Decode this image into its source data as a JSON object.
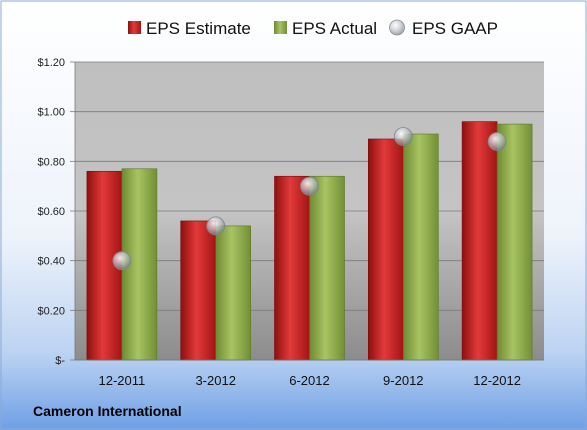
{
  "company": "Cameron International",
  "colors": {
    "estimate": "#cc1f1f",
    "actual": "#8fae4a",
    "gaap": "#b8bcc4"
  },
  "chart_data": {
    "type": "bar",
    "categories": [
      "12-2011",
      "3-2012",
      "6-2012",
      "9-2012",
      "12-2012"
    ],
    "series": [
      {
        "name": "EPS Estimate",
        "kind": "bar",
        "values": [
          0.76,
          0.56,
          0.74,
          0.89,
          0.96
        ]
      },
      {
        "name": "EPS Actual",
        "kind": "bar",
        "values": [
          0.77,
          0.54,
          0.74,
          0.91,
          0.95
        ]
      },
      {
        "name": "EPS GAAP",
        "kind": "scatter",
        "values": [
          0.4,
          0.54,
          0.7,
          0.9,
          0.88
        ]
      }
    ],
    "ylim": [
      0,
      1.2
    ],
    "yticks": [
      0,
      0.2,
      0.4,
      0.6,
      0.8,
      1.0,
      1.2
    ],
    "ytick_labels": [
      "$-",
      "$0.20",
      "$0.40",
      "$0.60",
      "$0.80",
      "$1.00",
      "$1.20"
    ],
    "grid": true,
    "legend": "top-center",
    "title": "",
    "xlabel": "",
    "ylabel": ""
  }
}
